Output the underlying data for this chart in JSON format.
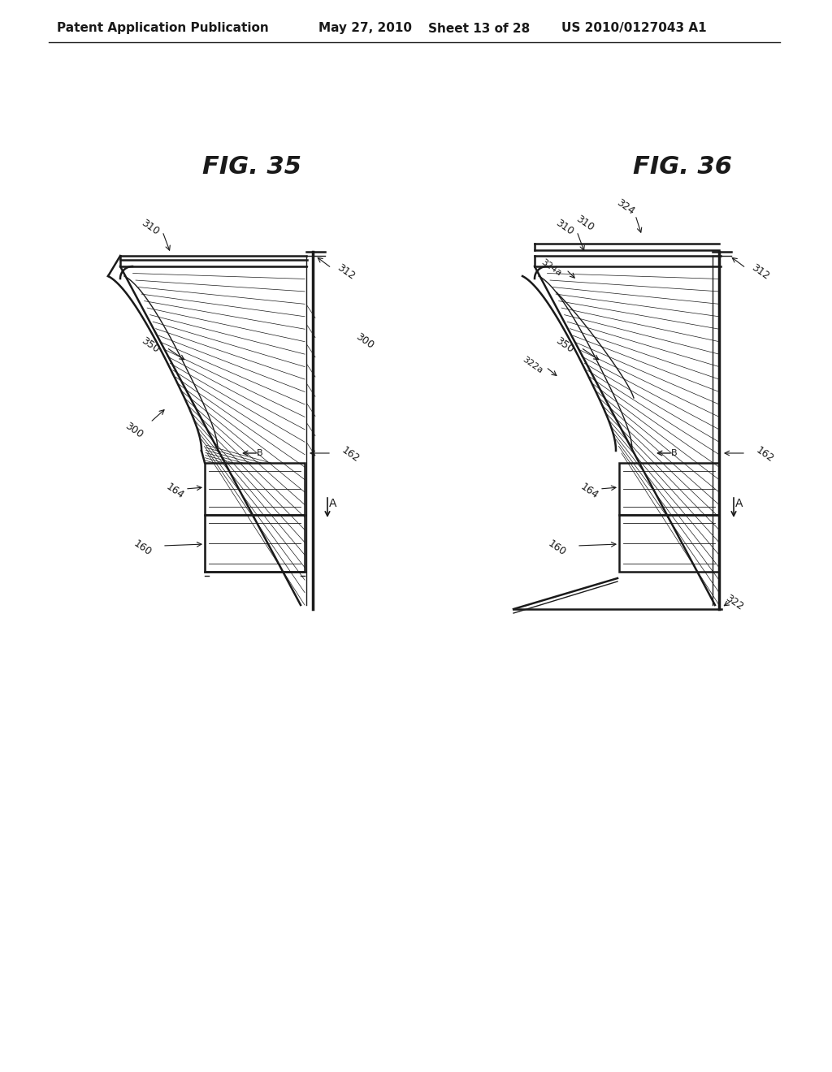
{
  "bg_color": "#ffffff",
  "header_text": "Patent Application Publication",
  "header_date": "May 27, 2010",
  "header_sheet": "Sheet 13 of 28",
  "header_patent": "US 2010/0127043 A1",
  "fig35_title": "FIG. 35",
  "fig36_title": "FIG. 36",
  "line_color": "#1a1a1a",
  "hatch_color": "#333333",
  "label_color": "#1a1a1a"
}
